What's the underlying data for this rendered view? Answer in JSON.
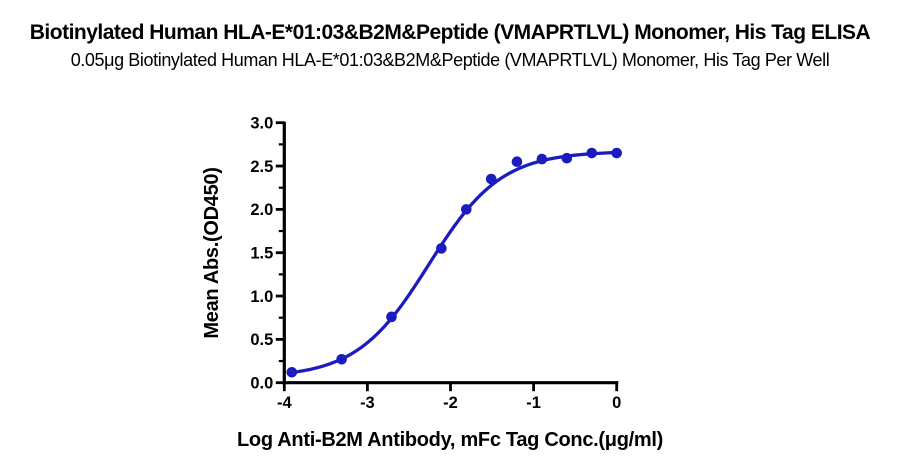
{
  "chart_data": {
    "type": "scatter",
    "title": "Biotinylated Human HLA-E*01:03&B2M&Peptide (VMAPRTLVL) Monomer, His Tag ELISA",
    "subtitle": "0.05μg Biotinylated Human HLA-E*01:03&B2M&Peptide (VMAPRTLVL) Monomer, His Tag Per Well",
    "xlabel": "Log Anti-B2M Antibody, mFc Tag Conc.(μg/ml)",
    "ylabel": "Mean Abs.(OD450)",
    "xlim": [
      -4,
      0
    ],
    "ylim": [
      0.0,
      3.0
    ],
    "x_ticks": [
      -4,
      -3,
      -2,
      -1,
      0
    ],
    "y_ticks": [
      0.0,
      0.5,
      1.0,
      1.5,
      2.0,
      2.5,
      3.0
    ],
    "y_minor_ticks": [
      0.25,
      0.75,
      1.25,
      1.75,
      2.25,
      2.75
    ],
    "grid": false,
    "legend_position": "none",
    "axis_color": "#000000",
    "text_color": "#000000",
    "series": [
      {
        "color": "#1c1cbe",
        "marker": "circle",
        "x": [
          -3.91,
          -3.31,
          -2.71,
          -2.11,
          -1.81,
          -1.51,
          -1.2,
          -0.9,
          -0.6,
          -0.3,
          0.0
        ],
        "y": [
          0.12,
          0.27,
          0.76,
          1.55,
          2.0,
          2.35,
          2.55,
          2.58,
          2.59,
          2.65,
          2.65
        ],
        "fit_curve": {
          "model": "4PL",
          "bottom": 0.06,
          "top": 2.67,
          "log_ec50": -2.26,
          "hill": 1.0,
          "x_start": -3.91,
          "x_end": 0.0
        }
      }
    ]
  }
}
